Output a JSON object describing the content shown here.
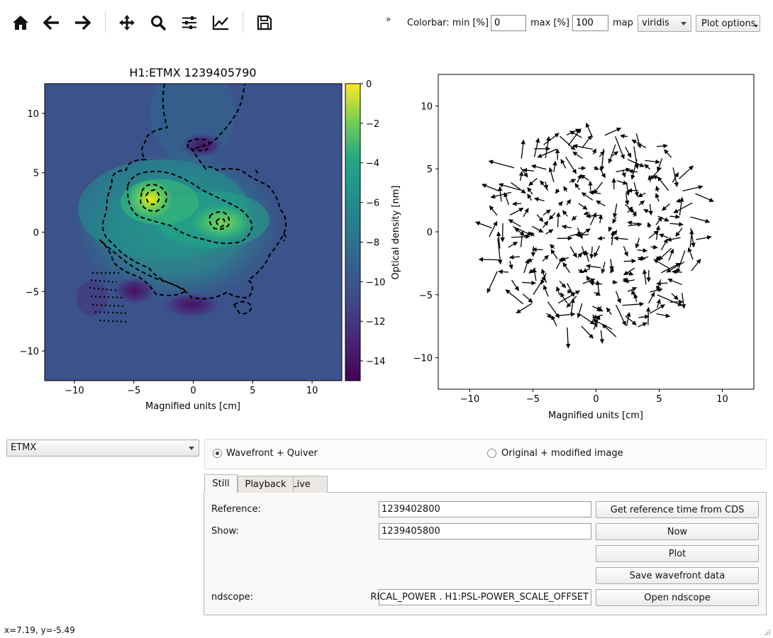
{
  "toolbar": {
    "buttons": [
      {
        "name": "home-button",
        "icon": "home-icon"
      },
      {
        "name": "back-button",
        "icon": "arrow-left-icon"
      },
      {
        "name": "forward-button",
        "icon": "arrow-right-icon"
      },
      {
        "name": "pan-button",
        "icon": "move-icon"
      },
      {
        "name": "zoom-button",
        "icon": "magnifier-icon"
      },
      {
        "name": "configure-subplots-button",
        "icon": "sliders-icon"
      },
      {
        "name": "edit-axis-button",
        "icon": "line-chart-icon"
      },
      {
        "name": "save-figure-button",
        "icon": "floppy-disk-icon"
      }
    ],
    "overflow_label": "»",
    "colorbar_min_label": "Colorbar: min [%]",
    "colorbar_min_value": "0",
    "colorbar_max_label": "max [%]",
    "colorbar_max_value": "100",
    "map_label": "map",
    "map_value": "viridis",
    "plot_options_label": "Plot options"
  },
  "chart_data": [
    {
      "type": "heatmap",
      "title": "H1:ETMX 1239405790",
      "xlabel": "Magnified units [cm]",
      "ylabel": "",
      "xlim": [
        -12.5,
        12.5
      ],
      "ylim": [
        -12.5,
        12.5
      ],
      "xticks": [
        -10,
        -5,
        0,
        5,
        10
      ],
      "yticks": [
        -10,
        -5,
        0,
        5,
        10
      ],
      "colormap": "viridis",
      "colorbar": {
        "label": "Optical density [nm]",
        "min": -15,
        "max": 0,
        "ticks": [
          0,
          -2,
          -4,
          -6,
          -8,
          -10,
          -12,
          -14
        ]
      },
      "background_value": -11.5,
      "features": [
        {
          "kind": "peak",
          "x": -3.6,
          "y": 2.8,
          "value": -0.5
        },
        {
          "kind": "peak",
          "x": 2.5,
          "y": 0.7,
          "value": -3.5
        },
        {
          "kind": "trough",
          "x": 0.8,
          "y": 7.4,
          "value": -14
        },
        {
          "kind": "trough",
          "x": -5.0,
          "y": -5.0,
          "value": -13.5
        },
        {
          "kind": "trough",
          "x": -0.3,
          "y": -6.3,
          "value": -14
        }
      ],
      "contours": "dashed black"
    },
    {
      "type": "quiver",
      "title": "",
      "xlabel": "Magnified units [cm]",
      "ylabel": "",
      "xlim": [
        -12.5,
        12.5
      ],
      "ylim": [
        -12.5,
        12.5
      ],
      "xticks": [
        -10,
        -5,
        0,
        5,
        10
      ],
      "yticks": [
        -10,
        -5,
        0,
        5,
        10
      ],
      "field_radius": 8.5
    }
  ],
  "source_select": {
    "value": "ETMX"
  },
  "view_mode": {
    "options": [
      {
        "label": "Wavefront + Quiver",
        "selected": true
      },
      {
        "label": "Original + modified image",
        "selected": false
      }
    ]
  },
  "tabs": [
    {
      "label": "Still",
      "active": true
    },
    {
      "label": "Playback",
      "active": false
    },
    {
      "label": "Live",
      "active": false
    }
  ],
  "still_panel": {
    "reference_label": "Reference:",
    "reference_value": "1239402800",
    "get_reference_button": "Get reference time from CDS",
    "show_label": "Show:",
    "show_value": "1239405800",
    "now_button": "Now",
    "plot_button": "Plot",
    "save_wavefront_button": "Save wavefront data",
    "ndscope_label": "ndscope:",
    "ndscope_value": "RICAL_POWER . H1:PSL-POWER_SCALE_OFFSET",
    "open_ndscope_button": "Open ndscope"
  },
  "status_bar": {
    "coords": "x=7.19, y=-5.49"
  }
}
